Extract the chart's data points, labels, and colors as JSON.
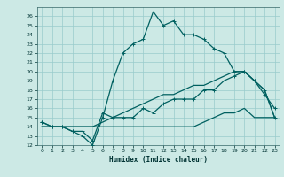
{
  "title": "",
  "xlabel": "Humidex (Indice chaleur)",
  "xlim": [
    -0.5,
    23.5
  ],
  "ylim": [
    12,
    27
  ],
  "yticks": [
    12,
    13,
    14,
    15,
    16,
    17,
    18,
    19,
    20,
    21,
    22,
    23,
    24,
    25,
    26
  ],
  "xticks": [
    0,
    1,
    2,
    3,
    4,
    5,
    6,
    7,
    8,
    9,
    10,
    11,
    12,
    13,
    14,
    15,
    16,
    17,
    18,
    19,
    20,
    21,
    22,
    23
  ],
  "bg_color": "#cce9e5",
  "grid_color": "#99cccc",
  "line_color": "#006060",
  "curve1_y": [
    14.5,
    14,
    14,
    13.5,
    13,
    12,
    15,
    19,
    22,
    23,
    23.5,
    26.5,
    25,
    25.5,
    24,
    24,
    23.5,
    22.5,
    22,
    20,
    20,
    19,
    17.5,
    16
  ],
  "curve2_y": [
    14.5,
    14,
    14,
    13.5,
    13.5,
    12.5,
    15.5,
    15,
    15,
    15,
    16,
    15.5,
    16.5,
    17,
    17,
    17,
    18,
    18,
    19,
    19.5,
    20,
    19,
    18,
    15
  ],
  "curve3_y": [
    14,
    14,
    14,
    14,
    14,
    14,
    14,
    14,
    14,
    14,
    14,
    14,
    14,
    14,
    14,
    14,
    14.5,
    15,
    15.5,
    15.5,
    16,
    15,
    15,
    15
  ],
  "curve4_y": [
    14,
    14,
    14,
    14,
    14,
    14,
    14.5,
    15,
    15.5,
    16,
    16.5,
    17,
    17.5,
    17.5,
    18,
    18.5,
    18.5,
    19,
    19.5,
    20,
    20,
    19,
    18,
    15
  ]
}
